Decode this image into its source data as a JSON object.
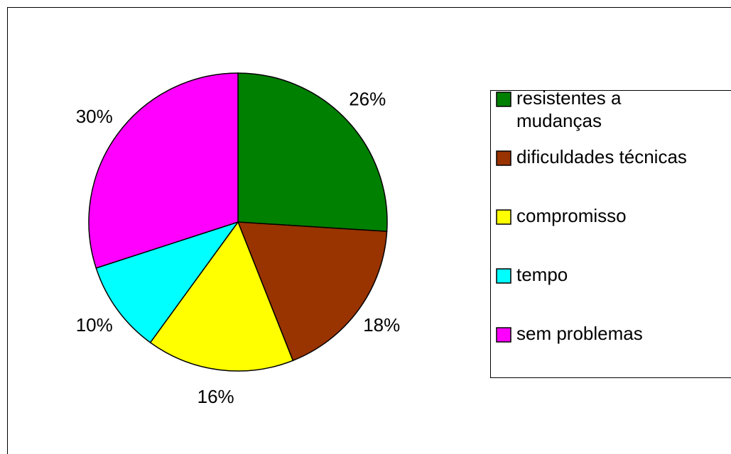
{
  "chart_data": {
    "type": "pie",
    "categories": [
      "resistentes a mudanças",
      "dificuldades técnicas",
      "compromisso",
      "tempo",
      "sem problemas"
    ],
    "values": [
      26,
      18,
      16,
      10,
      30
    ],
    "value_labels": [
      "26%",
      "18%",
      "16%",
      "10%",
      "30%"
    ],
    "colors": [
      "#008000",
      "#993300",
      "#ffff00",
      "#00ffff",
      "#ff00ff"
    ],
    "legend": "right"
  }
}
